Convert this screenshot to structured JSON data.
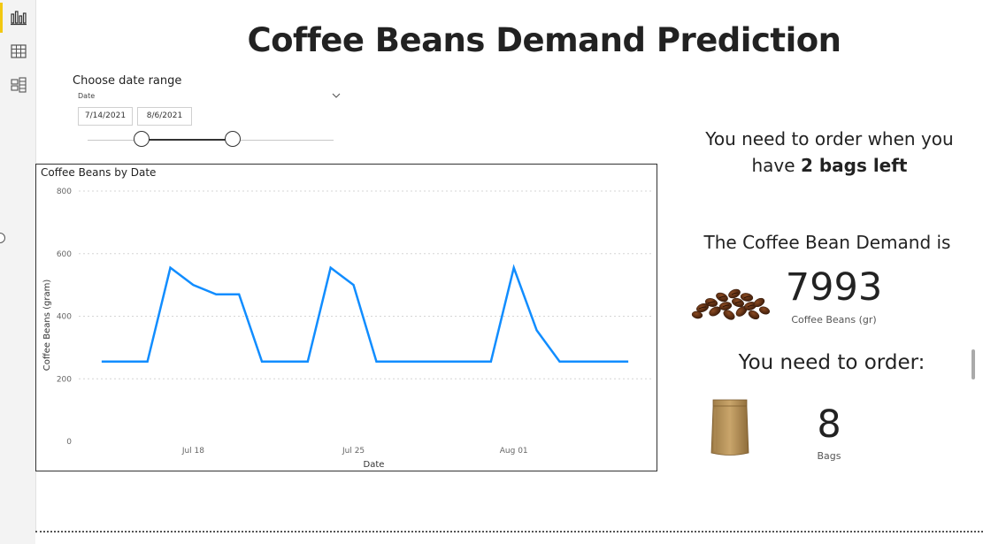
{
  "page": {
    "title": "Coffee Beans Demand Prediction"
  },
  "nav": {
    "items": [
      {
        "icon": "report-view-icon",
        "active": true
      },
      {
        "icon": "data-view-icon",
        "active": false
      },
      {
        "icon": "model-view-icon",
        "active": false
      }
    ],
    "accent_color": "#f2c811"
  },
  "slicer": {
    "title": "Choose date range",
    "field": "Date",
    "start_date": "7/14/2021",
    "end_date": "8/6/2021",
    "range_start_fraction": 0.22,
    "range_end_fraction": 0.59
  },
  "chart_data": {
    "type": "line",
    "title": "Coffee Beans by Date",
    "xlabel": "Date",
    "ylabel": "Coffee Beans (gram)",
    "ylim": [
      0,
      800
    ],
    "yticks": [
      0,
      200,
      400,
      600,
      800
    ],
    "ytick_labels": [
      "0",
      "200",
      "400",
      "600",
      "800"
    ],
    "xticks": [
      {
        "day": 5,
        "label": "Jul 18"
      },
      {
        "day": 12,
        "label": "Jul 25"
      },
      {
        "day": 19,
        "label": "Aug 01"
      }
    ],
    "grid": true,
    "line_color": "#118dff",
    "x_start": "Jul 14",
    "x": [
      1,
      2,
      3,
      4,
      5,
      6,
      7,
      8,
      9,
      10,
      11,
      12,
      13,
      14,
      15,
      16,
      17,
      18,
      19,
      20,
      21,
      22,
      23,
      24
    ],
    "values": [
      255,
      255,
      255,
      555,
      500,
      470,
      470,
      255,
      255,
      255,
      555,
      500,
      255,
      255,
      255,
      255,
      255,
      255,
      555,
      355,
      255,
      255,
      255,
      255
    ]
  },
  "kpis": {
    "order_message_prefix": "You need to order when you have",
    "order_message_bold": "2 bags left",
    "demand_label": "The Coffee Bean Demand is",
    "demand_value": "7993",
    "demand_unit": "Coffee Beans (gr)",
    "order_label": "You need to order:",
    "bags_value": "8",
    "bags_unit": "Bags"
  }
}
